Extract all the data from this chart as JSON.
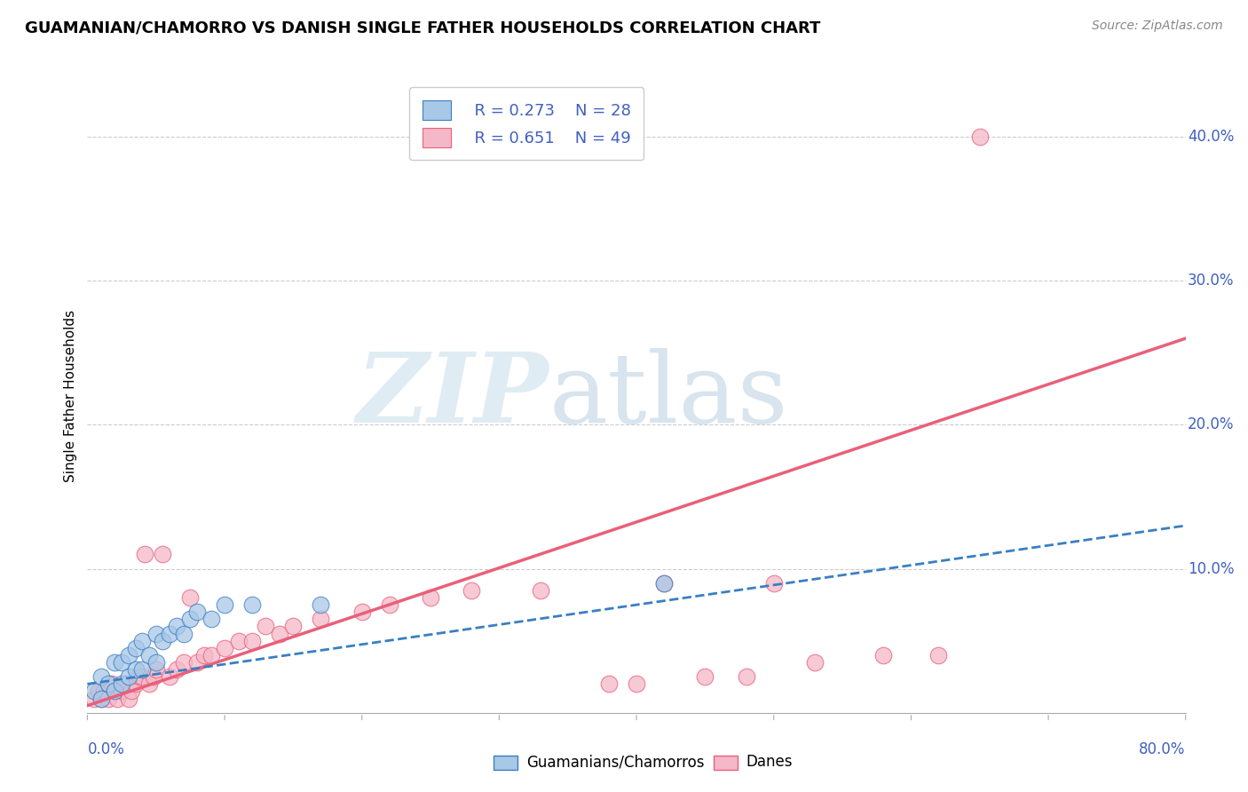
{
  "title": "GUAMANIAN/CHAMORRO VS DANISH SINGLE FATHER HOUSEHOLDS CORRELATION CHART",
  "source": "Source: ZipAtlas.com",
  "ylabel": "Single Father Households",
  "ytick_values": [
    0.0,
    0.1,
    0.2,
    0.3,
    0.4
  ],
  "xlim": [
    0.0,
    0.8
  ],
  "ylim": [
    0.0,
    0.44
  ],
  "legend_r1": "R = 0.273",
  "legend_n1": "N = 28",
  "legend_r2": "R = 0.651",
  "legend_n2": "N = 49",
  "blue_color": "#a8c8e8",
  "blue_color_dark": "#3a7fc1",
  "pink_color": "#f4b8c8",
  "pink_color_dark": "#e8607a",
  "label_color": "#4060c0",
  "background_color": "#ffffff",
  "grid_color": "#cccccc",
  "guamanian_x": [
    0.005,
    0.01,
    0.01,
    0.015,
    0.02,
    0.02,
    0.025,
    0.025,
    0.03,
    0.03,
    0.035,
    0.035,
    0.04,
    0.04,
    0.045,
    0.05,
    0.05,
    0.055,
    0.06,
    0.065,
    0.07,
    0.075,
    0.08,
    0.09,
    0.1,
    0.12,
    0.17,
    0.42
  ],
  "guamanian_y": [
    0.015,
    0.01,
    0.025,
    0.02,
    0.015,
    0.035,
    0.02,
    0.035,
    0.025,
    0.04,
    0.03,
    0.045,
    0.03,
    0.05,
    0.04,
    0.035,
    0.055,
    0.05,
    0.055,
    0.06,
    0.055,
    0.065,
    0.07,
    0.065,
    0.075,
    0.075,
    0.075,
    0.09
  ],
  "danish_x": [
    0.005,
    0.008,
    0.01,
    0.012,
    0.015,
    0.018,
    0.02,
    0.022,
    0.025,
    0.028,
    0.03,
    0.032,
    0.035,
    0.038,
    0.04,
    0.042,
    0.045,
    0.048,
    0.05,
    0.055,
    0.06,
    0.065,
    0.07,
    0.075,
    0.08,
    0.085,
    0.09,
    0.1,
    0.11,
    0.12,
    0.13,
    0.14,
    0.15,
    0.17,
    0.2,
    0.22,
    0.25,
    0.28,
    0.33,
    0.38,
    0.4,
    0.42,
    0.45,
    0.48,
    0.5,
    0.53,
    0.58,
    0.62,
    0.65
  ],
  "danish_y": [
    0.01,
    0.015,
    0.01,
    0.015,
    0.01,
    0.02,
    0.015,
    0.01,
    0.015,
    0.02,
    0.01,
    0.015,
    0.02,
    0.025,
    0.025,
    0.11,
    0.02,
    0.025,
    0.03,
    0.11,
    0.025,
    0.03,
    0.035,
    0.08,
    0.035,
    0.04,
    0.04,
    0.045,
    0.05,
    0.05,
    0.06,
    0.055,
    0.06,
    0.065,
    0.07,
    0.075,
    0.08,
    0.085,
    0.085,
    0.02,
    0.02,
    0.09,
    0.025,
    0.025,
    0.09,
    0.035,
    0.04,
    0.04,
    0.4
  ],
  "guam_trendline_x": [
    0.0,
    0.8
  ],
  "guam_trendline_y": [
    0.02,
    0.13
  ],
  "danish_trendline_x": [
    0.0,
    0.8
  ],
  "danish_trendline_y": [
    0.005,
    0.26
  ]
}
